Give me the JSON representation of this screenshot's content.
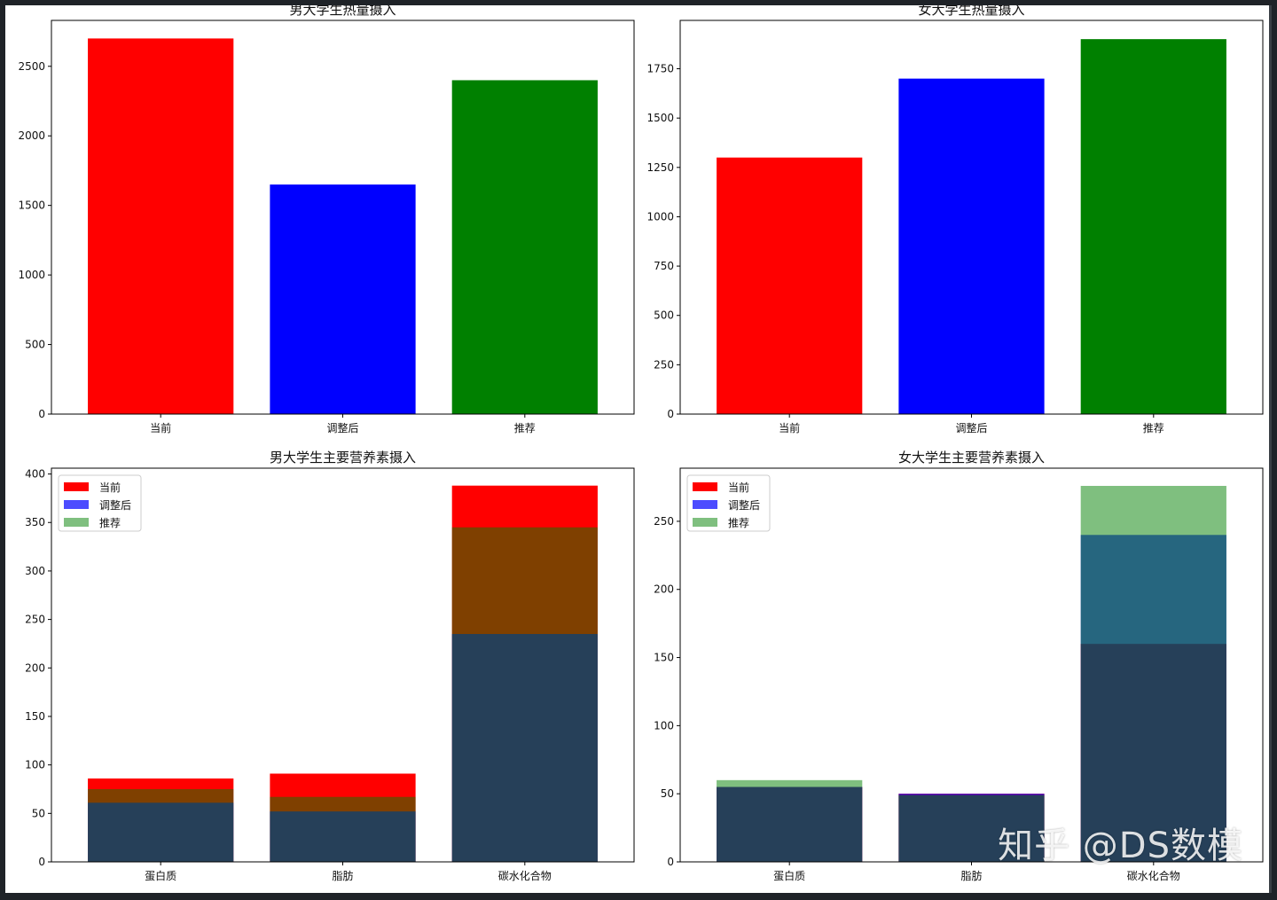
{
  "chart_data": [
    {
      "type": "bar",
      "title": "男大学生热量摄入",
      "categories": [
        "当前",
        "调整后",
        "推荐"
      ],
      "values": [
        2700,
        1650,
        2400
      ],
      "colors": [
        "#ff0000",
        "#0000ff",
        "#008000"
      ],
      "ylim": [
        0,
        2830
      ],
      "yticks": [
        0,
        500,
        1000,
        1500,
        2000,
        2500
      ]
    },
    {
      "type": "bar",
      "title": "女大学生热量摄入",
      "categories": [
        "当前",
        "调整后",
        "推荐"
      ],
      "values": [
        1300,
        1700,
        1900
      ],
      "colors": [
        "#ff0000",
        "#0000ff",
        "#008000"
      ],
      "ylim": [
        0,
        1995
      ],
      "yticks": [
        0,
        250,
        500,
        750,
        1000,
        1250,
        1500,
        1750
      ]
    },
    {
      "type": "bar",
      "title": "男大学生主要营养素摄入",
      "categories": [
        "蛋白质",
        "脂肪",
        "碳水化合物"
      ],
      "series": [
        {
          "name": "当前",
          "values": [
            86,
            91,
            388
          ],
          "color": "#ff0000",
          "opacity": 1.0
        },
        {
          "name": "调整后",
          "values": [
            61,
            52,
            235
          ],
          "color": "#0000ff",
          "opacity": 0.7
        },
        {
          "name": "推荐",
          "values": [
            75,
            67,
            345
          ],
          "color": "#008000",
          "opacity": 0.5
        }
      ],
      "legend": "upper-left",
      "ylim": [
        0,
        406
      ],
      "yticks": [
        0,
        50,
        100,
        150,
        200,
        250,
        300,
        350,
        400
      ]
    },
    {
      "type": "bar",
      "title": "女大学生主要营养素摄入",
      "categories": [
        "蛋白质",
        "脂肪",
        "碳水化合物"
      ],
      "series": [
        {
          "name": "当前",
          "values": [
            55,
            50,
            160
          ],
          "color": "#ff0000",
          "opacity": 1.0
        },
        {
          "name": "调整后",
          "values": [
            55,
            50,
            240
          ],
          "color": "#0000ff",
          "opacity": 0.7
        },
        {
          "name": "推荐",
          "values": [
            60,
            49,
            276
          ],
          "color": "#008000",
          "opacity": 0.5
        }
      ],
      "legend": "upper-left",
      "ylim": [
        0,
        289
      ],
      "yticks": [
        0,
        50,
        100,
        150,
        200,
        250
      ]
    }
  ],
  "watermark": "知乎 @DS数模"
}
